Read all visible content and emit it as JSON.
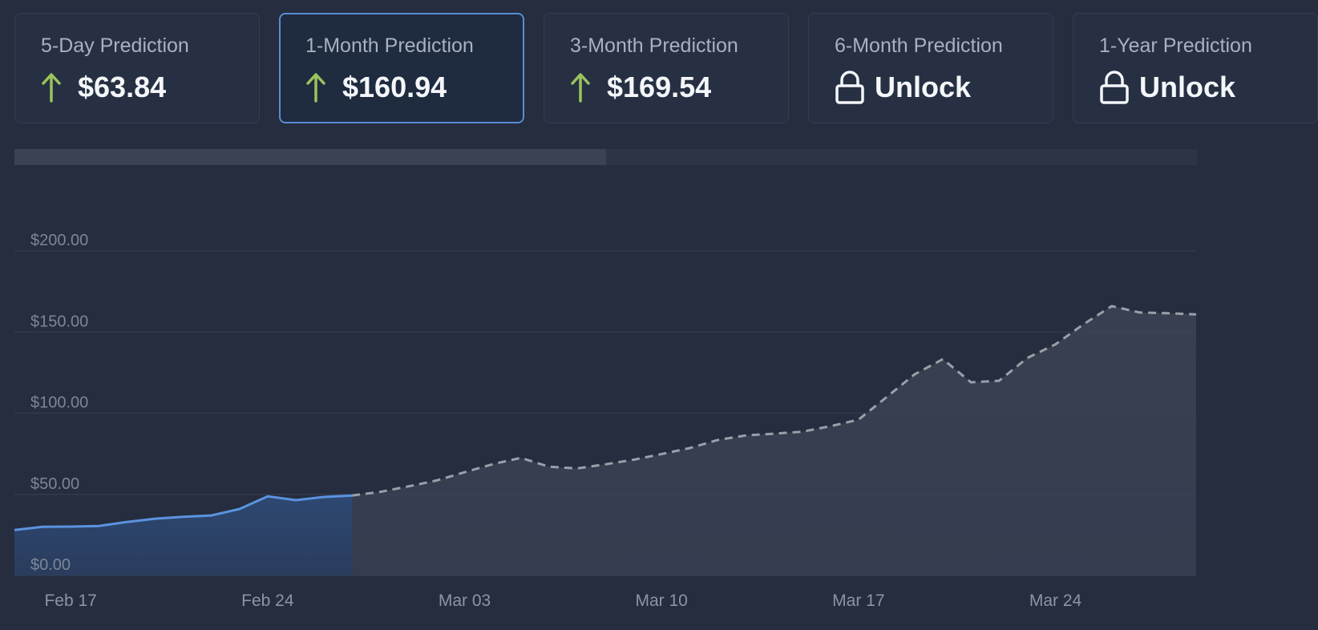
{
  "cards": [
    {
      "title": "5-Day Prediction",
      "value": "$63.84",
      "icon": "arrow-up-icon",
      "selected": false
    },
    {
      "title": "1-Month Prediction",
      "value": "$160.94",
      "icon": "arrow-up-icon",
      "selected": true
    },
    {
      "title": "3-Month Prediction",
      "value": "$169.54",
      "icon": "arrow-up-icon",
      "selected": false
    },
    {
      "title": "6-Month Prediction",
      "value": "Unlock",
      "icon": "lock-icon",
      "selected": false
    },
    {
      "title": "1-Year Prediction",
      "value": "Unlock",
      "icon": "lock-icon",
      "selected": false
    }
  ],
  "colors": {
    "background": "#252d3e",
    "actual_line": "#5b93e0",
    "prediction_line": "#9aa0a8",
    "arrow_up": "#9bc35c",
    "selected_border": "#5a8bd6"
  },
  "chart_data": {
    "type": "line",
    "title": "",
    "xlabel": "",
    "ylabel": "",
    "ylim": [
      0,
      200
    ],
    "xlim": [
      "2025-02-15",
      "2025-03-29"
    ],
    "yticks": [
      0,
      50,
      100,
      150,
      200
    ],
    "ytick_labels": [
      "$0.00",
      "$50.00",
      "$100.00",
      "$150.00",
      "$200.00"
    ],
    "xticks": [
      "2025-02-17",
      "2025-02-24",
      "2025-03-03",
      "2025-03-10",
      "2025-03-17",
      "2025-03-24"
    ],
    "xtick_labels": [
      "Feb 17",
      "Feb 24",
      "Mar 03",
      "Mar 10",
      "Mar 17",
      "Mar 24"
    ],
    "grid": true,
    "series": [
      {
        "style": "solid",
        "x": [
          "2025-02-15",
          "2025-02-16",
          "2025-02-17",
          "2025-02-18",
          "2025-02-19",
          "2025-02-20",
          "2025-02-21",
          "2025-02-22",
          "2025-02-23",
          "2025-02-24",
          "2025-02-25",
          "2025-02-26",
          "2025-02-27"
        ],
        "y": [
          28.0,
          30.0,
          30.1,
          30.5,
          33.0,
          35.0,
          36.2,
          37.0,
          41.0,
          48.8,
          46.4,
          48.4,
          49.3
        ]
      },
      {
        "style": "dashed",
        "x": [
          "2025-02-27",
          "2025-02-28",
          "2025-03-01",
          "2025-03-02",
          "2025-03-03",
          "2025-03-04",
          "2025-03-05",
          "2025-03-06",
          "2025-03-07",
          "2025-03-08",
          "2025-03-09",
          "2025-03-10",
          "2025-03-11",
          "2025-03-12",
          "2025-03-13",
          "2025-03-14",
          "2025-03-15",
          "2025-03-16",
          "2025-03-17",
          "2025-03-18",
          "2025-03-19",
          "2025-03-20",
          "2025-03-21",
          "2025-03-22",
          "2025-03-23",
          "2025-03-24",
          "2025-03-25",
          "2025-03-26",
          "2025-03-27",
          "2025-03-28",
          "2025-03-29"
        ],
        "y": [
          49.3,
          51.5,
          54.9,
          58.5,
          63.6,
          68.6,
          72.5,
          67.0,
          66.0,
          68.5,
          71.3,
          74.8,
          78.5,
          83.5,
          86.3,
          87.4,
          88.6,
          92.0,
          96.0,
          110.0,
          124.0,
          133.3,
          119.0,
          120.0,
          134.0,
          142.4,
          154.8,
          166.0,
          162.0,
          161.6,
          160.9
        ]
      }
    ]
  }
}
